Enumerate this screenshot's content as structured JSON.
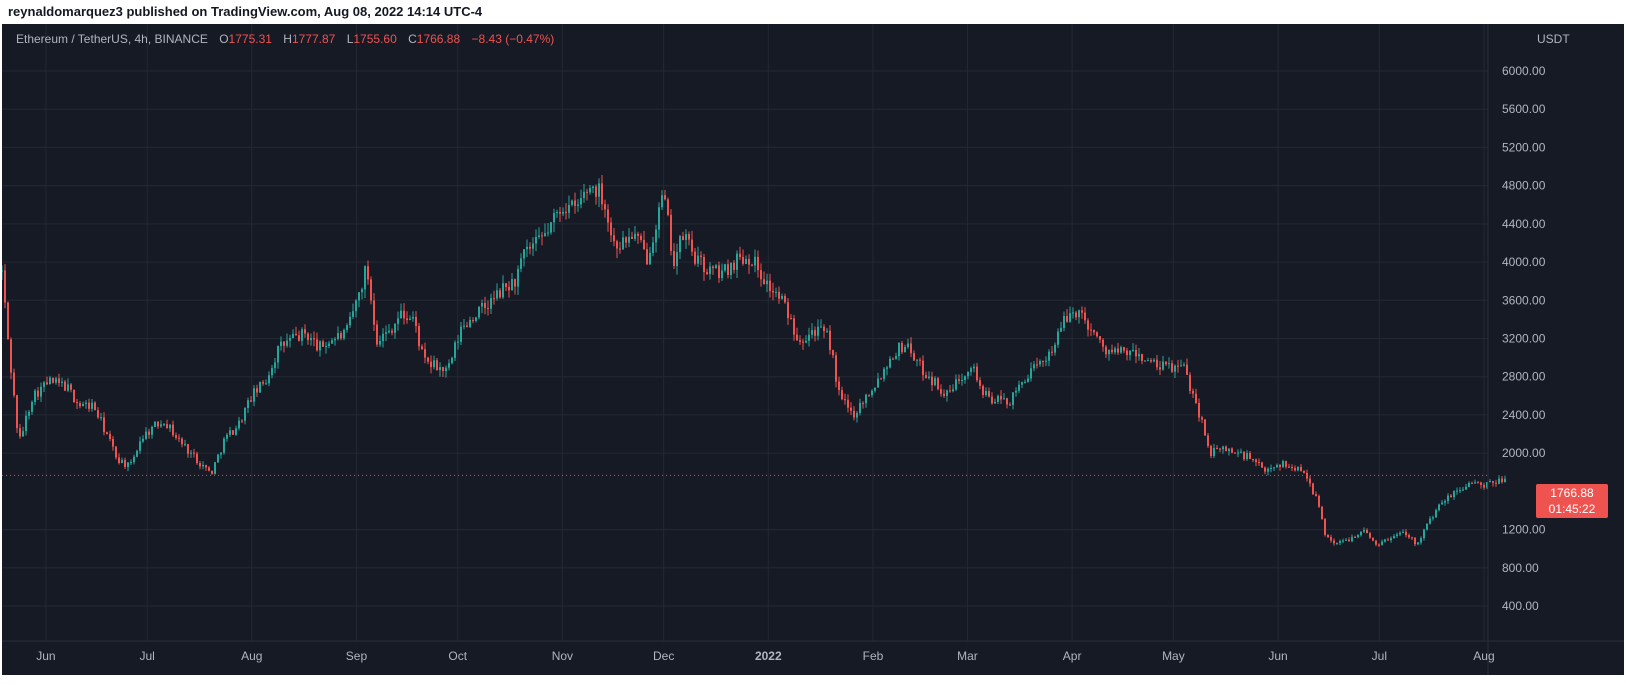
{
  "header": {
    "publisher_line": "reynaldomarquez3 published on TradingView.com, Aug 08, 2022 14:14 UTC-4"
  },
  "legend": {
    "symbol": "Ethereum / TetherUS, 4h, BINANCE",
    "open_label": "O",
    "open": "1775.31",
    "high_label": "H",
    "high": "1777.87",
    "low_label": "L",
    "low": "1755.60",
    "close_label": "C",
    "close": "1766.88",
    "change": "−8.43 (−0.47%)"
  },
  "price_axis": {
    "unit": "USDT",
    "ticks": [
      "6000.00",
      "5600.00",
      "5200.00",
      "4800.00",
      "4400.00",
      "4000.00",
      "3600.00",
      "3200.00",
      "2800.00",
      "2400.00",
      "2000.00",
      "1200.00",
      "800.00",
      "400.00"
    ],
    "current_price": "1766.88",
    "countdown": "01:45:22"
  },
  "colors": {
    "background": "#161a25",
    "grid": "#242833",
    "up": "#26a69a",
    "down": "#ef5350",
    "text": "#b2b5be"
  },
  "chart_data": {
    "type": "line",
    "style": "candlestick",
    "interval": "4h",
    "x_ticks": [
      "Jun",
      "Jul",
      "Aug",
      "Sep",
      "Oct",
      "Nov",
      "Dec",
      "2022",
      "Feb",
      "Mar",
      "Apr",
      "May",
      "Jun",
      "Jul",
      "Aug"
    ],
    "y_ticks": [
      400,
      800,
      1200,
      2000,
      2400,
      2800,
      3200,
      3600,
      4000,
      4400,
      4800,
      5200,
      5600,
      6000
    ],
    "ylim": [
      200,
      6400
    ],
    "xlim": [
      "2021-05-19",
      "2022-08-17"
    ],
    "grid": true,
    "last_price": 1766.88,
    "series": [
      {
        "x": [
          "2021-05-19",
          "2021-05-21",
          "2021-05-24",
          "2021-05-28",
          "2021-06-02",
          "2021-06-07",
          "2021-06-11",
          "2021-06-15",
          "2021-06-19",
          "2021-06-22",
          "2021-06-26",
          "2021-06-29",
          "2021-07-02",
          "2021-07-06",
          "2021-07-10",
          "2021-07-14",
          "2021-07-18",
          "2021-07-20",
          "2021-07-24",
          "2021-07-28",
          "2021-08-01",
          "2021-08-05",
          "2021-08-09",
          "2021-08-13",
          "2021-08-17",
          "2021-08-21",
          "2021-08-25",
          "2021-08-29",
          "2021-09-02",
          "2021-09-04",
          "2021-09-07",
          "2021-09-10",
          "2021-09-14",
          "2021-09-18",
          "2021-09-21",
          "2021-09-25",
          "2021-09-28",
          "2021-10-02",
          "2021-10-06",
          "2021-10-10",
          "2021-10-14",
          "2021-10-18",
          "2021-10-21",
          "2021-10-25",
          "2021-10-28",
          "2021-11-01",
          "2021-11-05",
          "2021-11-08",
          "2021-11-10",
          "2021-11-13",
          "2021-11-16",
          "2021-11-19",
          "2021-11-22",
          "2021-11-26",
          "2021-11-29",
          "2021-12-01",
          "2021-12-04",
          "2021-12-07",
          "2021-12-11",
          "2021-12-15",
          "2021-12-19",
          "2021-12-23",
          "2021-12-27",
          "2022-01-01",
          "2022-01-05",
          "2022-01-10",
          "2022-01-15",
          "2022-01-19",
          "2022-01-22",
          "2022-01-26",
          "2022-01-30",
          "2022-02-03",
          "2022-02-07",
          "2022-02-11",
          "2022-02-15",
          "2022-02-19",
          "2022-02-23",
          "2022-02-27",
          "2022-03-02",
          "2022-03-06",
          "2022-03-10",
          "2022-03-14",
          "2022-03-18",
          "2022-03-22",
          "2022-03-26",
          "2022-03-30",
          "2022-04-02",
          "2022-04-06",
          "2022-04-10",
          "2022-04-14",
          "2022-04-18",
          "2022-04-22",
          "2022-04-26",
          "2022-04-30",
          "2022-05-04",
          "2022-05-08",
          "2022-05-12",
          "2022-05-16",
          "2022-05-20",
          "2022-05-24",
          "2022-05-28",
          "2022-06-01",
          "2022-06-05",
          "2022-06-09",
          "2022-06-13",
          "2022-06-15",
          "2022-06-18",
          "2022-06-22",
          "2022-06-26",
          "2022-06-30",
          "2022-07-04",
          "2022-07-08",
          "2022-07-12",
          "2022-07-16",
          "2022-07-20",
          "2022-07-24",
          "2022-07-28",
          "2022-08-01",
          "2022-08-05",
          "2022-08-08"
        ],
        "y": [
          3900,
          3100,
          2100,
          2600,
          2750,
          2700,
          2500,
          2500,
          2200,
          1950,
          1850,
          2150,
          2250,
          2350,
          2150,
          2000,
          1850,
          1790,
          2150,
          2300,
          2600,
          2750,
          3100,
          3200,
          3250,
          3100,
          3200,
          3250,
          3700,
          3950,
          3200,
          3250,
          3450,
          3400,
          2950,
          2900,
          2850,
          3300,
          3450,
          3550,
          3700,
          3800,
          4100,
          4200,
          4350,
          4600,
          4550,
          4750,
          4800,
          4700,
          4200,
          4200,
          4300,
          4050,
          4450,
          4700,
          4000,
          4300,
          4000,
          3900,
          3900,
          4050,
          4050,
          3750,
          3600,
          3200,
          3300,
          3200,
          2600,
          2400,
          2600,
          2800,
          3050,
          3150,
          2900,
          2750,
          2600,
          2800,
          2950,
          2600,
          2550,
          2550,
          2800,
          2900,
          3100,
          3400,
          3500,
          3350,
          3100,
          3050,
          3050,
          3000,
          2900,
          2900,
          2900,
          2500,
          2000,
          2050,
          2000,
          1950,
          1800,
          1900,
          1850,
          1820,
          1450,
          1150,
          1050,
          1100,
          1200,
          1050,
          1100,
          1200,
          1050,
          1300,
          1500,
          1600,
          1700,
          1650,
          1700,
          1766.88
        ]
      }
    ]
  }
}
